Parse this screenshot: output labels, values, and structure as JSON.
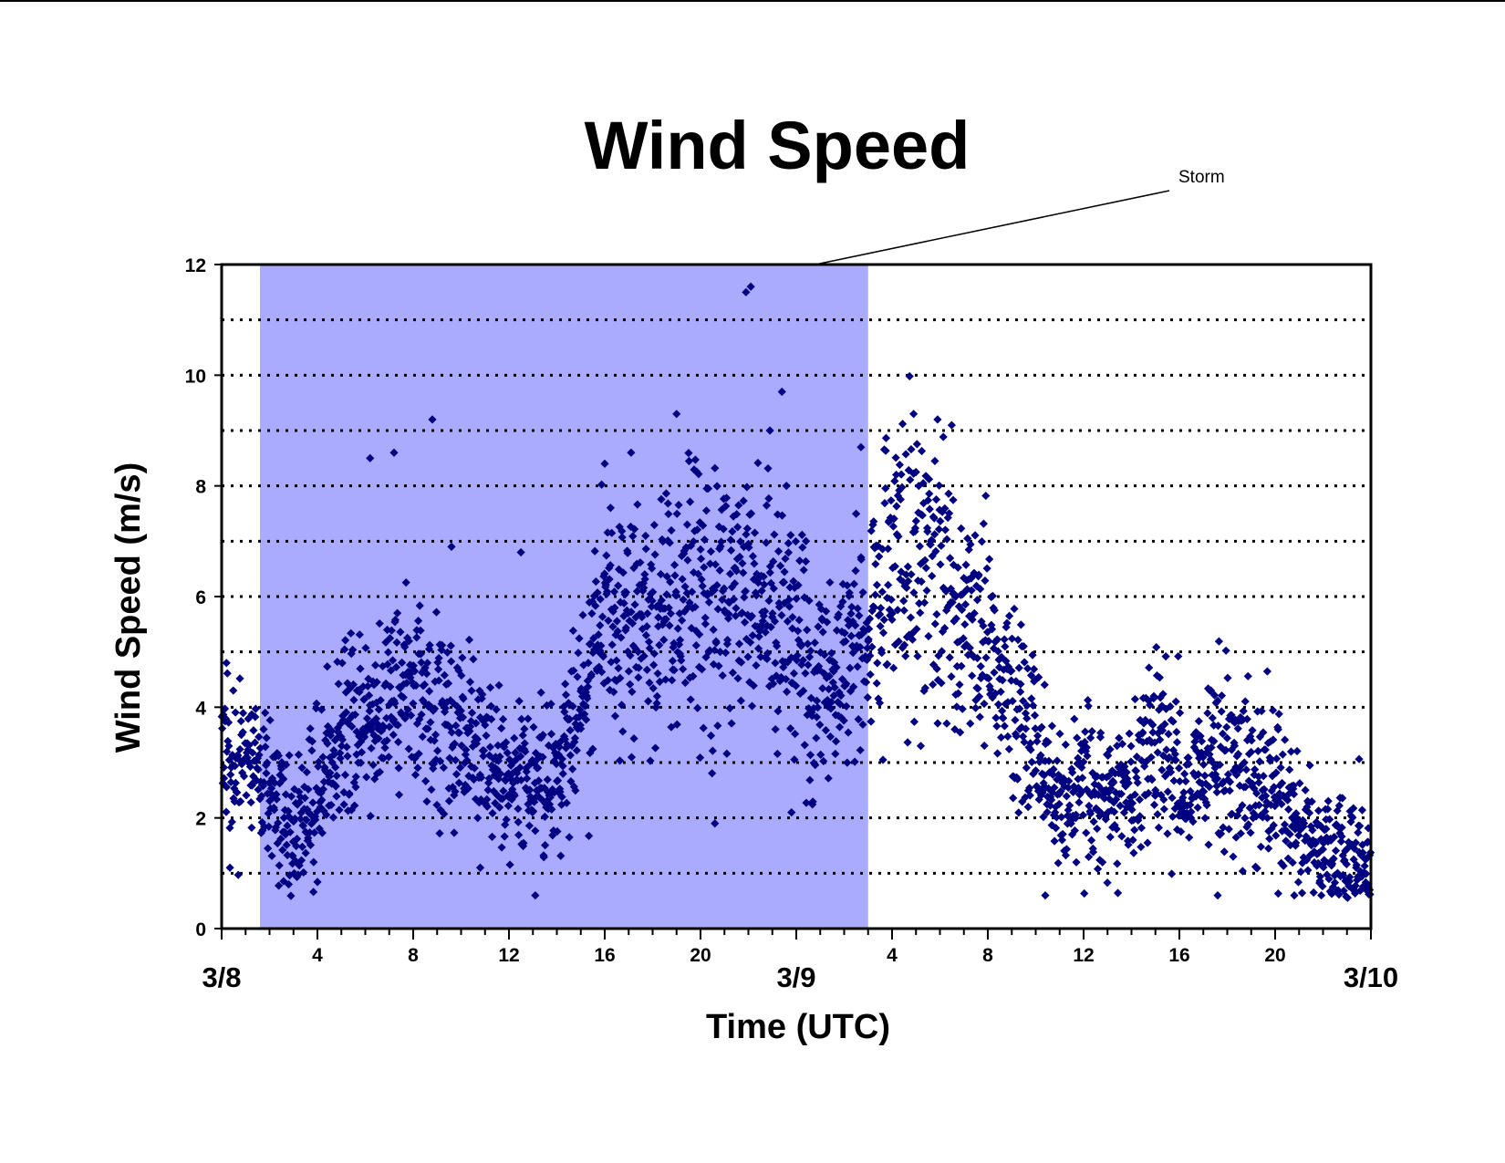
{
  "chart_data": {
    "type": "scatter",
    "title": "Wind Speed",
    "xlabel": "Time (UTC)",
    "ylabel": "Wind Speed (m/s)",
    "x_unit": "hours since 3/8 00:00 UTC",
    "xlim": [
      0,
      48
    ],
    "ylim": [
      0,
      12
    ],
    "y_ticks": [
      0,
      2,
      4,
      6,
      8,
      10,
      12
    ],
    "y_gridlines": [
      1,
      2,
      3,
      4,
      5,
      6,
      7,
      8,
      9,
      10,
      11
    ],
    "grid": "horizontal dotted",
    "x_hour_ticks": [
      {
        "x": 4,
        "label": "4"
      },
      {
        "x": 8,
        "label": "8"
      },
      {
        "x": 12,
        "label": "12"
      },
      {
        "x": 16,
        "label": "16"
      },
      {
        "x": 20,
        "label": "20"
      },
      {
        "x": 28,
        "label": "4"
      },
      {
        "x": 32,
        "label": "8"
      },
      {
        "x": 36,
        "label": "12"
      },
      {
        "x": 40,
        "label": "16"
      },
      {
        "x": 44,
        "label": "20"
      }
    ],
    "x_date_ticks": [
      {
        "x": 0,
        "label": "3/8"
      },
      {
        "x": 24,
        "label": "3/9"
      },
      {
        "x": 48,
        "label": "3/10"
      }
    ],
    "shaded_region": {
      "x_start": 1.6,
      "x_end": 27,
      "color": "#aaaaff"
    },
    "annotations": [
      {
        "text": "Storm",
        "target_x": 24.8,
        "target_y": 12
      }
    ],
    "marker_color": "#000080",
    "marker": "diamond",
    "series": [
      {
        "name": "",
        "trend": [
          [
            0,
            3.2
          ],
          [
            1,
            3.0
          ],
          [
            1.6,
            2.9
          ],
          [
            2,
            2.4
          ],
          [
            3,
            1.7
          ],
          [
            4,
            2.6
          ],
          [
            5,
            3.4
          ],
          [
            6,
            3.8
          ],
          [
            7,
            4.5
          ],
          [
            8,
            4.3
          ],
          [
            9,
            3.8
          ],
          [
            10,
            3.5
          ],
          [
            11,
            3.0
          ],
          [
            12,
            2.8
          ],
          [
            13,
            2.6
          ],
          [
            14,
            2.9
          ],
          [
            15,
            4.2
          ],
          [
            16,
            5.6
          ],
          [
            17,
            5.7
          ],
          [
            18,
            5.2
          ],
          [
            19,
            6.1
          ],
          [
            20,
            6.3
          ],
          [
            21,
            5.8
          ],
          [
            22,
            5.6
          ],
          [
            23,
            5.7
          ],
          [
            24,
            5.3
          ],
          [
            25,
            4.4
          ],
          [
            26,
            4.7
          ],
          [
            27,
            5.4
          ],
          [
            28,
            6.6
          ],
          [
            29,
            6.9
          ],
          [
            30,
            6.2
          ],
          [
            31,
            5.7
          ],
          [
            32,
            5.0
          ],
          [
            33,
            4.1
          ],
          [
            34,
            3.5
          ],
          [
            35,
            2.0
          ],
          [
            36,
            2.7
          ],
          [
            37,
            2.4
          ],
          [
            38,
            2.6
          ],
          [
            39,
            3.2
          ],
          [
            40,
            2.5
          ],
          [
            41,
            3.0
          ],
          [
            42,
            3.1
          ],
          [
            43,
            2.8
          ],
          [
            44,
            2.6
          ],
          [
            45,
            1.8
          ],
          [
            46,
            1.4
          ],
          [
            47,
            1.3
          ],
          [
            48,
            1.1
          ]
        ],
        "points_per_hour": 55,
        "highlights": [
          [
            21.9,
            11.5
          ],
          [
            22.1,
            11.6
          ],
          [
            23.4,
            9.7
          ],
          [
            8.8,
            9.2
          ],
          [
            19.0,
            9.3
          ],
          [
            28.9,
            9.3
          ],
          [
            29.9,
            9.2
          ],
          [
            0.2,
            4.8
          ],
          [
            13.1,
            0.6
          ],
          [
            10.8,
            1.1
          ],
          [
            34.4,
            0.6
          ],
          [
            44.8,
            0.6
          ],
          [
            2.8,
            0.8
          ],
          [
            12.5,
            6.8
          ],
          [
            9.6,
            6.9
          ],
          [
            6.2,
            8.5
          ],
          [
            7.2,
            8.6
          ],
          [
            16.0,
            8.4
          ],
          [
            17.1,
            8.6
          ],
          [
            26.7,
            8.7
          ],
          [
            22.9,
            9.0
          ],
          [
            20.6,
            1.9
          ],
          [
            23.8,
            2.1
          ],
          [
            29.2,
            3.3
          ],
          [
            47.8,
            0.7
          ],
          [
            41.6,
            0.6
          ]
        ]
      }
    ]
  }
}
